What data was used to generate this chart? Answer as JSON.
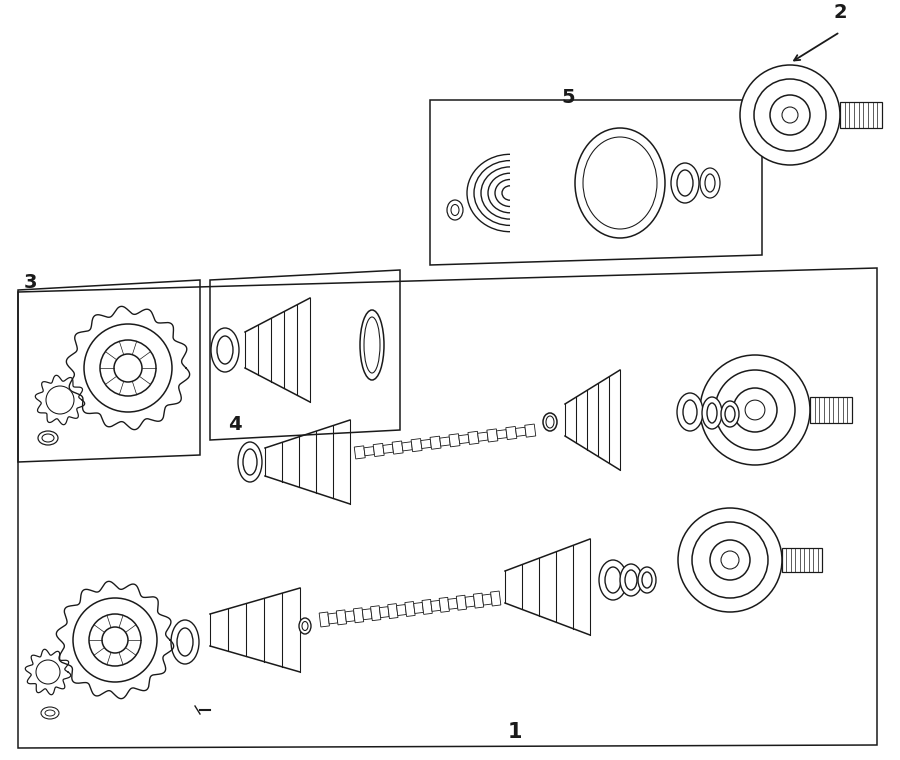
{
  "bg_color": "#ffffff",
  "line_color": "#1a1a1a",
  "figsize": [
    9.0,
    7.6
  ],
  "dpi": 100,
  "lw": 1.1
}
